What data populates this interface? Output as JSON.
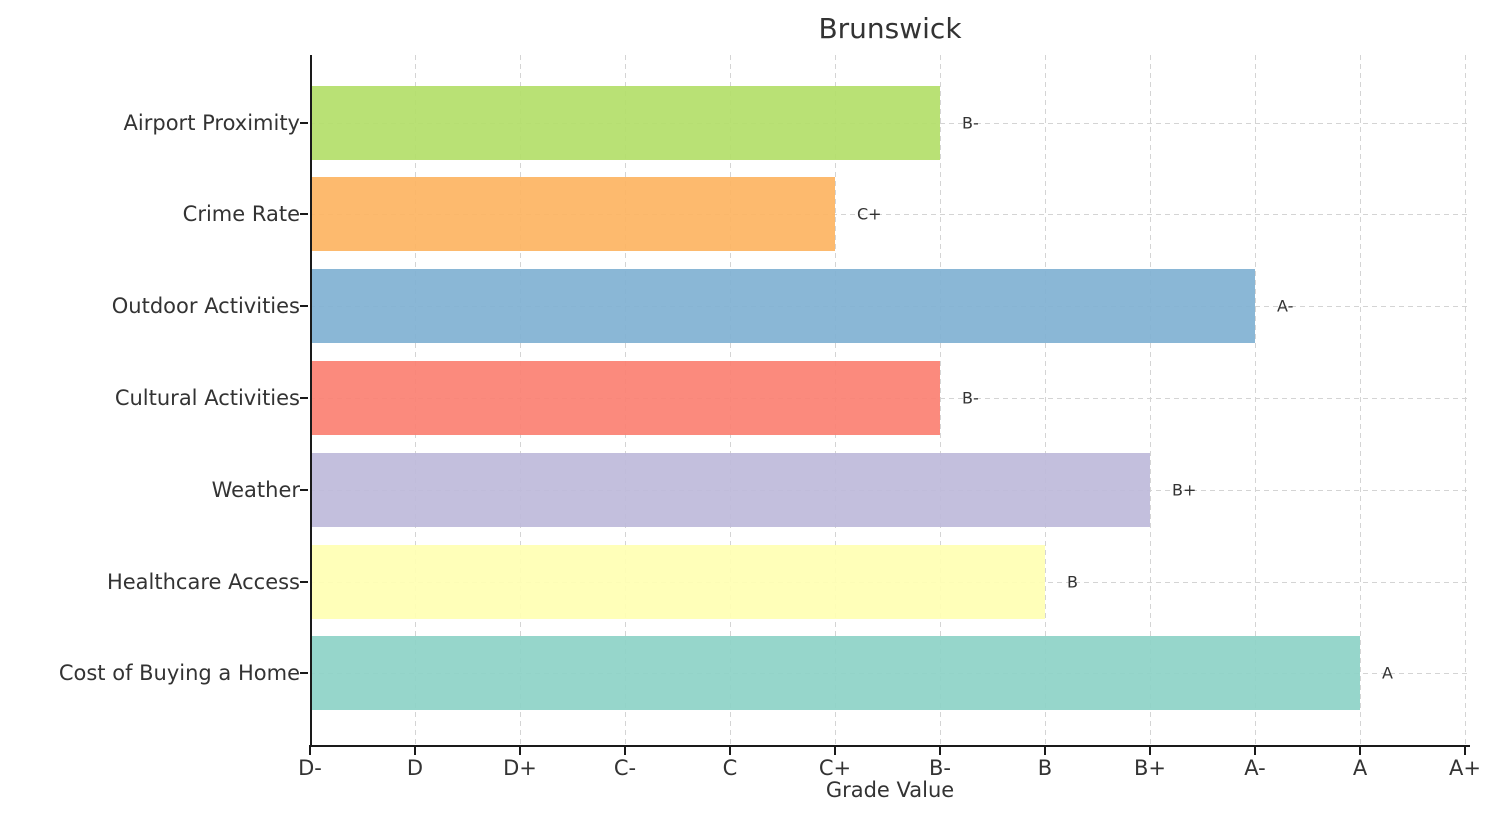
{
  "figure": {
    "title": "Brunswick",
    "xlabel": "Grade Value"
  },
  "chart_data": {
    "type": "bar",
    "orientation": "horizontal",
    "title": "Brunswick",
    "xlabel": "Grade Value",
    "ylabel": "",
    "grid": true,
    "legend": "none",
    "x_tick_labels": [
      "D-",
      "D",
      "D+",
      "C-",
      "C",
      "C+",
      "B-",
      "B",
      "B+",
      "A-",
      "A",
      "A+"
    ],
    "x_range_units": [
      0,
      11
    ],
    "categories": [
      "Airport Proximity",
      "Crime Rate",
      "Outdoor Activities",
      "Cultural Activities",
      "Weather",
      "Healthcare Access",
      "Cost of Buying a Home"
    ],
    "rows": [
      {
        "category": "Airport Proximity",
        "grade": "B-",
        "value_units_from_d_minus": 6,
        "color": "#b3de69"
      },
      {
        "category": "Crime Rate",
        "grade": "C+",
        "value_units_from_d_minus": 5,
        "color": "#fdb462"
      },
      {
        "category": "Outdoor Activities",
        "grade": "A-",
        "value_units_from_d_minus": 9,
        "color": "#80b1d3"
      },
      {
        "category": "Cultural Activities",
        "grade": "B-",
        "value_units_from_d_minus": 6,
        "color": "#fb8072"
      },
      {
        "category": "Weather",
        "grade": "B+",
        "value_units_from_d_minus": 8,
        "color": "#bebada"
      },
      {
        "category": "Healthcare Access",
        "grade": "B",
        "value_units_from_d_minus": 7,
        "color": "#ffffb3"
      },
      {
        "category": "Cost of Buying a Home",
        "grade": "A",
        "value_units_from_d_minus": 10,
        "color": "#8dd3c7"
      }
    ],
    "style": {
      "axis_color": "#1a1a1a",
      "grid_color": "#d4d4d4",
      "text_color": "#333333",
      "background_color": "#ffffff"
    }
  }
}
